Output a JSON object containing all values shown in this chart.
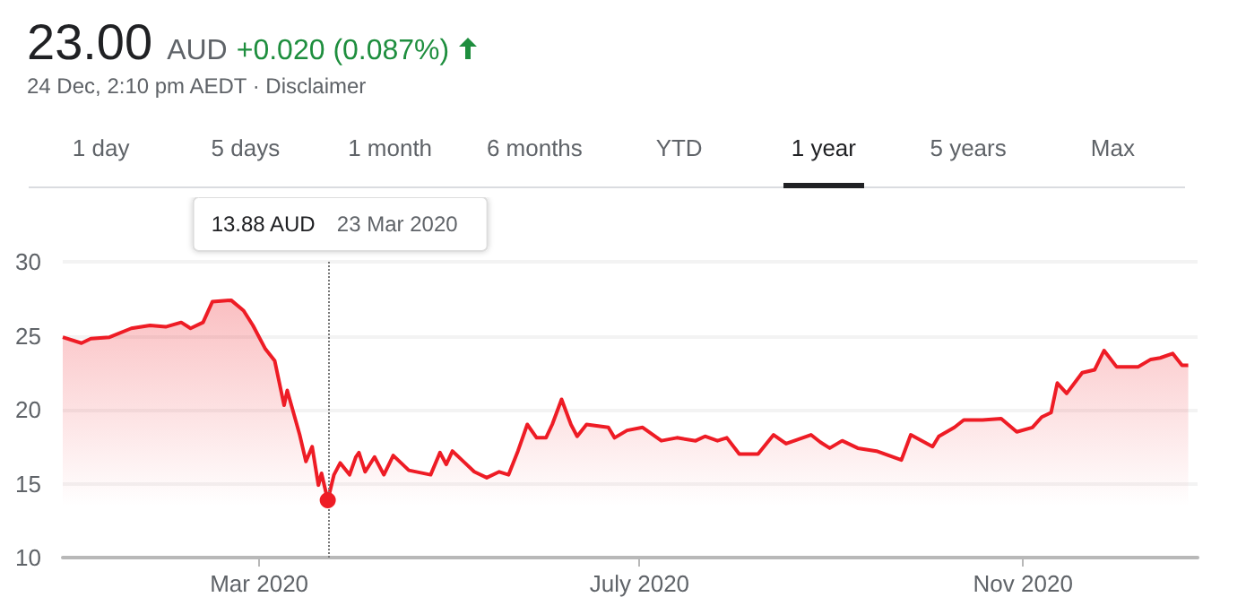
{
  "chart_data": {
    "type": "area",
    "title": "23.00",
    "annotations": [
      "AUD",
      "+0.020 (0.087%)",
      "24 Dec, 2:10 pm AEDT · Disclaimer",
      "1 day",
      "5 days",
      "1 month",
      "6 months",
      "YTD",
      "1 year",
      "5 years",
      "Max",
      "13.88 AUD",
      "23 Mar 2020"
    ],
    "x": [
      "2019-12-29",
      "2020-01-04",
      "2020-01-07",
      "2020-01-13",
      "2020-01-20",
      "2020-01-26",
      "2020-01-31",
      "2020-02-05",
      "2020-02-08",
      "2020-02-12",
      "2020-02-15",
      "2020-02-21",
      "2020-02-25",
      "2020-02-28",
      "2020-03-03",
      "2020-03-06",
      "2020-03-09",
      "2020-03-10",
      "2020-03-14",
      "2020-03-16",
      "2020-03-18",
      "2020-03-20",
      "2020-03-21",
      "2020-03-23",
      "2020-03-25",
      "2020-03-27",
      "2020-03-30",
      "2020-04-01",
      "2020-04-02",
      "2020-04-04",
      "2020-04-07",
      "2020-04-10",
      "2020-04-13",
      "2020-04-18",
      "2020-04-25",
      "2020-04-28",
      "2020-04-30",
      "2020-05-02",
      "2020-05-06",
      "2020-05-09",
      "2020-05-13",
      "2020-05-17",
      "2020-05-20",
      "2020-05-23",
      "2020-05-26",
      "2020-05-29",
      "2020-06-01",
      "2020-06-03",
      "2020-06-06",
      "2020-06-09",
      "2020-06-11",
      "2020-06-14",
      "2020-06-21",
      "2020-06-23",
      "2020-06-27",
      "2020-07-02",
      "2020-07-08",
      "2020-07-13",
      "2020-07-19",
      "2020-07-22",
      "2020-07-26",
      "2020-07-29",
      "2020-08-02",
      "2020-08-08",
      "2020-08-13",
      "2020-08-17",
      "2020-08-25",
      "2020-08-28",
      "2020-08-31",
      "2020-09-04",
      "2020-09-09",
      "2020-09-15",
      "2020-09-23",
      "2020-09-26",
      "2020-10-03",
      "2020-10-05",
      "2020-10-10",
      "2020-10-13",
      "2020-10-19",
      "2020-10-25",
      "2020-10-30",
      "2020-11-04",
      "2020-11-07",
      "2020-11-10",
      "2020-11-12",
      "2020-11-15",
      "2020-11-20",
      "2020-11-24",
      "2020-11-27",
      "2020-12-01",
      "2020-12-08",
      "2020-12-12",
      "2020-12-15",
      "2020-12-19",
      "2020-12-22",
      "2020-12-24"
    ],
    "series": [
      {
        "color": "#ee1c25",
        "values": [
          24.9,
          24.5,
          24.8,
          24.9,
          25.5,
          25.7,
          25.6,
          25.9,
          25.5,
          25.9,
          27.3,
          27.4,
          26.7,
          25.7,
          24.1,
          23.3,
          20.3,
          21.3,
          18.3,
          16.5,
          17.5,
          14.9,
          15.7,
          13.88,
          15.6,
          16.4,
          15.6,
          16.8,
          17.1,
          15.8,
          16.8,
          15.6,
          16.9,
          15.9,
          15.6,
          17.1,
          16.3,
          17.2,
          16.4,
          15.8,
          15.4,
          15.8,
          15.6,
          17.2,
          19.0,
          18.1,
          18.1,
          19.0,
          20.7,
          19.0,
          18.2,
          19.0,
          18.8,
          18.1,
          18.6,
          18.8,
          17.9,
          18.1,
          17.9,
          18.2,
          17.9,
          18.1,
          17.0,
          17.0,
          18.3,
          17.7,
          18.3,
          17.8,
          17.4,
          17.9,
          17.4,
          17.2,
          16.6,
          18.3,
          17.5,
          18.2,
          18.8,
          19.3,
          19.3,
          19.4,
          18.5,
          18.8,
          19.5,
          19.8,
          21.8,
          21.1,
          22.5,
          22.7,
          24.0,
          22.9,
          22.9,
          23.4,
          23.5,
          23.8,
          23.0,
          23.0
        ]
      }
    ],
    "xlim": [
      "2019-12-29",
      "2020-12-27"
    ],
    "xticks": [
      {
        "value": "2020-03-01",
        "label": "Mar 2020"
      },
      {
        "value": "2020-07-01",
        "label": "July 2020"
      },
      {
        "value": "2020-11-01",
        "label": "Nov 2020"
      }
    ],
    "ylim": [
      10,
      30
    ],
    "yticks": [
      10,
      15,
      20,
      25,
      30
    ],
    "grid": "y",
    "marker": "none",
    "line_style": "solid",
    "ref_lines": [
      {
        "axis": "x",
        "value": "2020-03-23",
        "color": "#777777",
        "line_style": "dotted"
      }
    ]
  }
}
